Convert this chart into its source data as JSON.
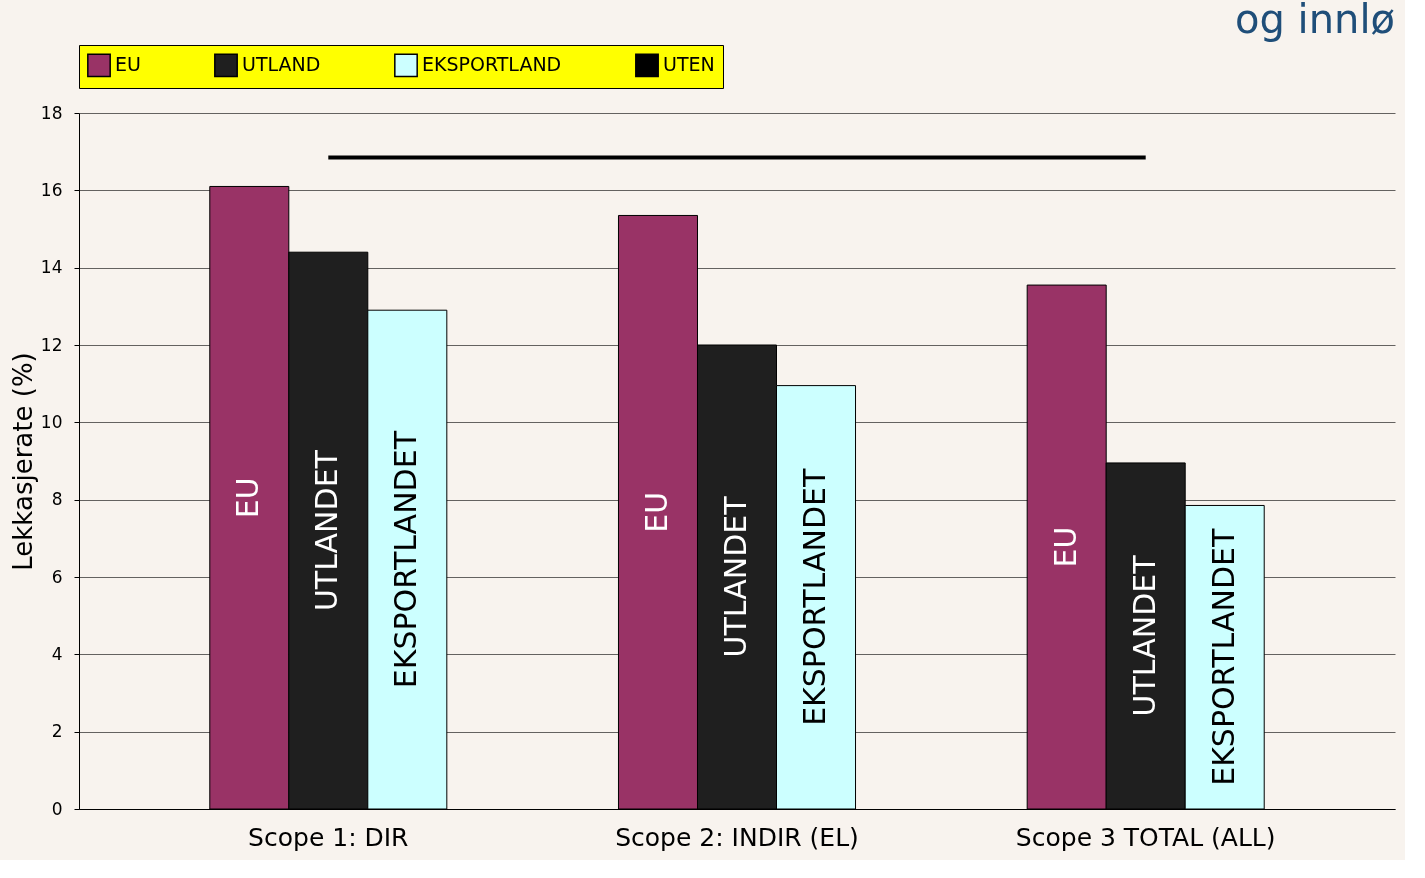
{
  "chart_data": {
    "type": "bar",
    "title": "og innlø",
    "ylabel": "Lekkasjerate (%)",
    "categories": [
      "Scope 1: DIR",
      "Scope 2: INDIR (EL)",
      "Scope 3 TOTAL (ALL)"
    ],
    "series": [
      {
        "name": "EU",
        "color": "#993366",
        "values": [
          16.1,
          15.35,
          13.55
        ]
      },
      {
        "name": "UTLAND",
        "color": "#1f1f1f",
        "values": [
          14.4,
          12.0,
          8.95
        ]
      },
      {
        "name": "EKSPORTLAND",
        "color": "#ccffff",
        "values": [
          12.9,
          10.95,
          7.85
        ]
      },
      {
        "name": "UTEN",
        "type": "line",
        "color": "#000000",
        "values": [
          16.85,
          16.85,
          16.85
        ]
      }
    ],
    "annotations": [
      "EU",
      "UTLANDET",
      "EKSPORTLANDET",
      "EU",
      "UTLANDET",
      "EKSPORTLANDET",
      "EU",
      "UTLANDET",
      "EKSPORTLANDET"
    ],
    "ylim": [
      0,
      18
    ],
    "yticks": [
      0,
      2,
      4,
      6,
      8,
      10,
      12,
      14,
      16,
      18
    ],
    "grid": "y",
    "legend": "top"
  }
}
